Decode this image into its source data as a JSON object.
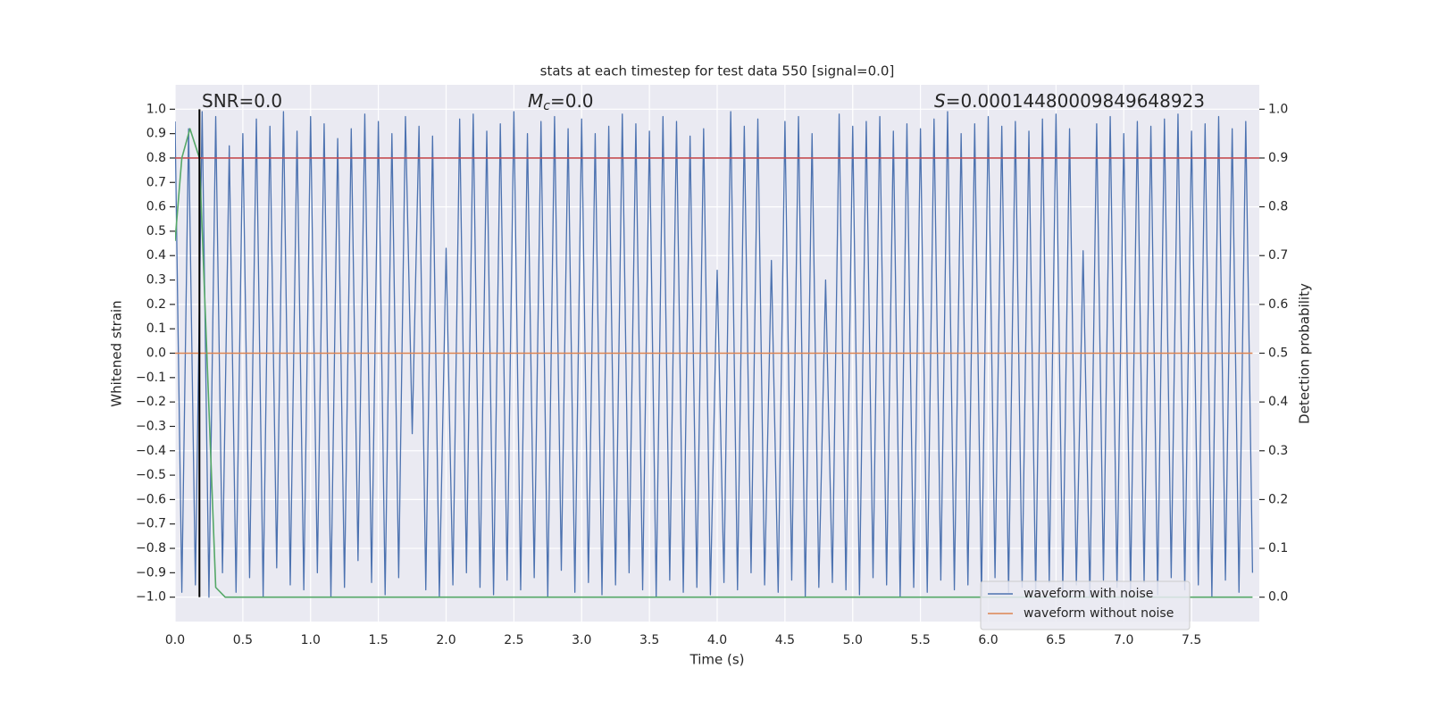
{
  "chart_data": {
    "type": "line",
    "title": "stats at each timestep for test data 550 [signal=0.0]",
    "xlabel": "Time (s)",
    "ylabel": "Whitened strain",
    "y2label": "Detection probability",
    "annotations": [
      {
        "text": "SNR=0.0"
      },
      {
        "symbol": "M",
        "subscript": "c",
        "text": "=0.0"
      },
      {
        "symbol": "S",
        "text": "=0.00014480009849648923"
      }
    ],
    "vline": {
      "x": 0.18,
      "color": "#000000"
    },
    "xlim": [
      0,
      8.0
    ],
    "xticks": [
      {
        "value": 0,
        "label": "0.0"
      },
      {
        "value": 0.5,
        "label": "0.5"
      },
      {
        "value": 1,
        "label": "1.0"
      },
      {
        "value": 1.5,
        "label": "1.5"
      },
      {
        "value": 2,
        "label": "2.0"
      },
      {
        "value": 2.5,
        "label": "2.5"
      },
      {
        "value": 3,
        "label": "3.0"
      },
      {
        "value": 3.5,
        "label": "3.5"
      },
      {
        "value": 4,
        "label": "4.0"
      },
      {
        "value": 4.5,
        "label": "4.5"
      },
      {
        "value": 5,
        "label": "5.0"
      },
      {
        "value": 5.5,
        "label": "5.5"
      },
      {
        "value": 6,
        "label": "6.0"
      },
      {
        "value": 6.5,
        "label": "6.5"
      },
      {
        "value": 7,
        "label": "7.0"
      },
      {
        "value": 7.5,
        "label": "7.5"
      }
    ],
    "ylim": [
      -1.1,
      1.1
    ],
    "yticks": [
      {
        "value": -1,
        "label": "−1.0"
      },
      {
        "value": -0.9,
        "label": "−0.9"
      },
      {
        "value": -0.8,
        "label": "−0.8"
      },
      {
        "value": -0.7,
        "label": "−0.7"
      },
      {
        "value": -0.6,
        "label": "−0.6"
      },
      {
        "value": -0.5,
        "label": "−0.5"
      },
      {
        "value": -0.4,
        "label": "−0.4"
      },
      {
        "value": -0.3,
        "label": "−0.3"
      },
      {
        "value": -0.2,
        "label": "−0.2"
      },
      {
        "value": -0.1,
        "label": "−0.1"
      },
      {
        "value": 0,
        "label": "0.0"
      },
      {
        "value": 0.1,
        "label": "0.1"
      },
      {
        "value": 0.2,
        "label": "0.2"
      },
      {
        "value": 0.3,
        "label": "0.3"
      },
      {
        "value": 0.4,
        "label": "0.4"
      },
      {
        "value": 0.5,
        "label": "0.5"
      },
      {
        "value": 0.6,
        "label": "0.6"
      },
      {
        "value": 0.7,
        "label": "0.7"
      },
      {
        "value": 0.8,
        "label": "0.8"
      },
      {
        "value": 0.9,
        "label": "0.9"
      },
      {
        "value": 1,
        "label": "1.0"
      }
    ],
    "y2lim": [
      -0.05,
      1.05
    ],
    "y2ticks": [
      {
        "value": 0,
        "label": "0.0"
      },
      {
        "value": 0.1,
        "label": "0.1"
      },
      {
        "value": 0.2,
        "label": "0.2"
      },
      {
        "value": 0.3,
        "label": "0.3"
      },
      {
        "value": 0.4,
        "label": "0.4"
      },
      {
        "value": 0.5,
        "label": "0.5"
      },
      {
        "value": 0.6,
        "label": "0.6"
      },
      {
        "value": 0.7,
        "label": "0.7"
      },
      {
        "value": 0.8,
        "label": "0.8"
      },
      {
        "value": 0.9,
        "label": "0.9"
      },
      {
        "value": 1,
        "label": "1.0"
      }
    ],
    "grid": true,
    "legend": "lower right",
    "series": [
      {
        "name": "waveform with noise",
        "color": "#4c72b0",
        "x": [
          0,
          0.05,
          0.1,
          0.15,
          0.2,
          0.25,
          0.3,
          0.35,
          0.4,
          0.45,
          0.5,
          0.55,
          0.6,
          0.65,
          0.7,
          0.75,
          0.8,
          0.85,
          0.9,
          0.95,
          1,
          1.05,
          1.1,
          1.15,
          1.2,
          1.25,
          1.3,
          1.35,
          1.4,
          1.45,
          1.5,
          1.55,
          1.6,
          1.65,
          1.7,
          1.75,
          1.8,
          1.85,
          1.9,
          1.95,
          2,
          2.05,
          2.1,
          2.15,
          2.2,
          2.25,
          2.3,
          2.35,
          2.4,
          2.45,
          2.5,
          2.55,
          2.6,
          2.65,
          2.7,
          2.75,
          2.8,
          2.85,
          2.9,
          2.95,
          3,
          3.05,
          3.1,
          3.15,
          3.2,
          3.25,
          3.3,
          3.35,
          3.4,
          3.45,
          3.5,
          3.55,
          3.6,
          3.65,
          3.7,
          3.75,
          3.8,
          3.85,
          3.9,
          3.95,
          4,
          4.05,
          4.1,
          4.15,
          4.2,
          4.25,
          4.3,
          4.35,
          4.4,
          4.45,
          4.5,
          4.55,
          4.6,
          4.65,
          4.7,
          4.75,
          4.8,
          4.85,
          4.9,
          4.95,
          5,
          5.05,
          5.1,
          5.15,
          5.2,
          5.25,
          5.3,
          5.35,
          5.4,
          5.45,
          5.5,
          5.55,
          5.6,
          5.65,
          5.7,
          5.75,
          5.8,
          5.85,
          5.9,
          5.95,
          6,
          6.05,
          6.1,
          6.15,
          6.2,
          6.25,
          6.3,
          6.35,
          6.4,
          6.45,
          6.5,
          6.55,
          6.6,
          6.65,
          6.7,
          6.75,
          6.8,
          6.85,
          6.9,
          6.95,
          7,
          7.05,
          7.1,
          7.15,
          7.2,
          7.25,
          7.3,
          7.35,
          7.4,
          7.45,
          7.5,
          7.55,
          7.6,
          7.65,
          7.7,
          7.75,
          7.8,
          7.85,
          7.9,
          7.95
        ],
        "values": [
          0.95,
          -0.98,
          0.92,
          -0.95,
          0.99,
          -1.0,
          0.97,
          -0.9,
          0.85,
          -0.98,
          0.9,
          -0.92,
          0.96,
          -1.0,
          0.93,
          -0.88,
          0.99,
          -0.95,
          0.91,
          -0.97,
          0.97,
          -0.9,
          0.94,
          -1.0,
          0.88,
          -0.96,
          0.92,
          -0.85,
          0.98,
          -0.94,
          0.95,
          -0.99,
          0.9,
          -0.92,
          0.97,
          -0.33,
          0.93,
          -0.97,
          0.89,
          -1.0,
          0.43,
          -0.95,
          0.96,
          -0.9,
          0.98,
          -0.96,
          0.91,
          -0.99,
          0.94,
          -0.93,
          0.99,
          -0.97,
          0.9,
          -0.92,
          0.95,
          -1.0,
          0.97,
          -0.89,
          0.92,
          -0.98,
          0.96,
          -0.94,
          0.9,
          -0.99,
          0.93,
          -0.95,
          0.98,
          -0.9,
          0.94,
          -0.97,
          0.91,
          -1.0,
          0.97,
          -0.93,
          0.95,
          -0.98,
          0.89,
          -0.96,
          0.92,
          -0.99,
          0.34,
          -0.94,
          0.99,
          -0.97,
          0.93,
          -0.9,
          0.96,
          -0.95,
          0.38,
          -0.98,
          0.95,
          -0.93,
          0.97,
          -1.0,
          0.9,
          -0.96,
          0.3,
          -0.94,
          0.98,
          -0.97,
          0.93,
          -0.99,
          0.95,
          -0.92,
          0.97,
          -0.95,
          0.91,
          -1.0,
          0.94,
          -0.96,
          0.92,
          -0.98,
          0.96,
          -0.93,
          0.99,
          -0.97,
          0.9,
          -0.95,
          0.94,
          -1.0,
          0.97,
          -0.92,
          0.93,
          -0.98,
          0.95,
          -0.96,
          0.91,
          -0.99,
          0.96,
          -0.94,
          0.98,
          -0.97,
          0.92,
          -0.95,
          0.42,
          -1.0,
          0.94,
          -0.93,
          0.97,
          -0.96,
          0.9,
          -0.98,
          0.95,
          -0.94,
          0.93,
          -0.99,
          0.96,
          -0.92,
          0.98,
          -0.97,
          0.91,
          -0.95,
          0.94,
          -1.0,
          0.97,
          -0.93,
          0.92,
          -0.98,
          0.95,
          -0.9
        ]
      },
      {
        "name": "waveform without noise",
        "color": "#dd8452",
        "x": [
          0,
          7.95
        ],
        "values": [
          0,
          0
        ]
      },
      {
        "color": "#c44e52",
        "axis": "y2",
        "x": [
          0,
          8.0
        ],
        "values": [
          0.9,
          0.9
        ]
      },
      {
        "color": "#55a868",
        "axis": "y2",
        "x": [
          0,
          0.05,
          0.11,
          0.18,
          0.3,
          0.37,
          7.95
        ],
        "values": [
          0.73,
          0.9,
          0.96,
          0.9,
          0.02,
          0,
          0
        ]
      }
    ]
  }
}
